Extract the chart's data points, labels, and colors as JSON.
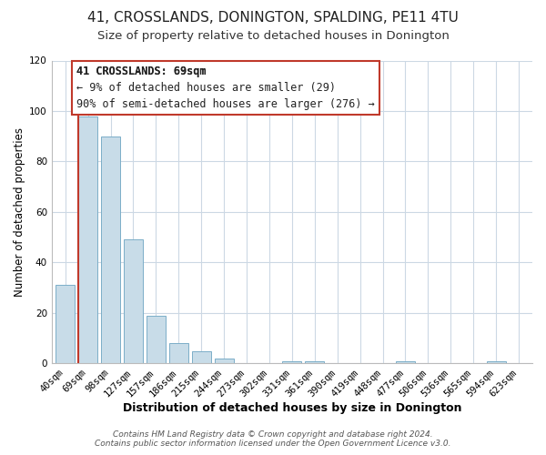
{
  "title": "41, CROSSLANDS, DONINGTON, SPALDING, PE11 4TU",
  "subtitle": "Size of property relative to detached houses in Donington",
  "xlabel": "Distribution of detached houses by size in Donington",
  "ylabel": "Number of detached properties",
  "bar_labels": [
    "40sqm",
    "69sqm",
    "98sqm",
    "127sqm",
    "157sqm",
    "186sqm",
    "215sqm",
    "244sqm",
    "273sqm",
    "302sqm",
    "331sqm",
    "361sqm",
    "390sqm",
    "419sqm",
    "448sqm",
    "477sqm",
    "506sqm",
    "536sqm",
    "565sqm",
    "594sqm",
    "623sqm"
  ],
  "bar_values": [
    31,
    98,
    90,
    49,
    19,
    8,
    5,
    2,
    0,
    0,
    1,
    1,
    0,
    0,
    0,
    1,
    0,
    0,
    0,
    1,
    0
  ],
  "highlight_index": 1,
  "bar_color": "#c8dce8",
  "bar_edge_color": "#7baec8",
  "highlight_bar_edge_color": "#c0392b",
  "ylim": [
    0,
    120
  ],
  "yticks": [
    0,
    20,
    40,
    60,
    80,
    100,
    120
  ],
  "annotation_title": "41 CROSSLANDS: 69sqm",
  "annotation_line1": "← 9% of detached houses are smaller (29)",
  "annotation_line2": "90% of semi-detached houses are larger (276) →",
  "annotation_box_color": "#ffffff",
  "annotation_box_edge": "#c0392b",
  "footer_line1": "Contains HM Land Registry data © Crown copyright and database right 2024.",
  "footer_line2": "Contains public sector information licensed under the Open Government Licence v3.0.",
  "background_color": "#ffffff",
  "grid_color": "#ccd8e4",
  "title_fontsize": 11,
  "subtitle_fontsize": 9.5,
  "xlabel_fontsize": 9,
  "ylabel_fontsize": 8.5,
  "tick_fontsize": 7.5,
  "footer_fontsize": 6.5,
  "annotation_fontsize": 8.5
}
